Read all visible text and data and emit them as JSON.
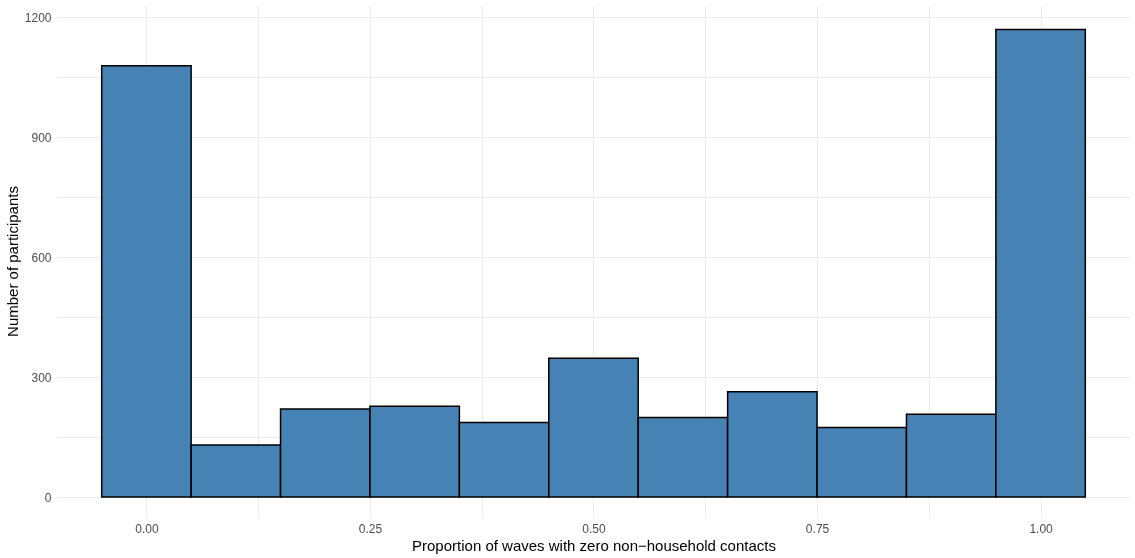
{
  "chart_data": {
    "type": "histogram",
    "xlabel": "Proportion of waves with zero non−household contacts",
    "ylabel": "Number of participants",
    "bins": [
      -0.05,
      0.05,
      0.15,
      0.25,
      0.35,
      0.45,
      0.55,
      0.65,
      0.75,
      0.85,
      0.95,
      1.05
    ],
    "values": [
      1078,
      130,
      220,
      227,
      186,
      347,
      199,
      263,
      174,
      207,
      1169
    ],
    "color": "#4682b4",
    "xlim": [
      -0.1,
      1.1
    ],
    "ylim": [
      -50,
      1230
    ],
    "xticks": [
      {
        "value": 0,
        "label": "0.00"
      },
      {
        "value": 0.125,
        "label": null
      },
      {
        "value": 0.25,
        "label": "0.25"
      },
      {
        "value": 0.375,
        "label": null
      },
      {
        "value": 0.5,
        "label": "0.50"
      },
      {
        "value": 0.625,
        "label": null
      },
      {
        "value": 0.75,
        "label": "0.75"
      },
      {
        "value": 0.875,
        "label": null
      },
      {
        "value": 1,
        "label": "1.00"
      }
    ],
    "yticks": [
      0,
      {
        "value": 150,
        "label": null
      },
      300,
      {
        "value": 450,
        "label": null
      },
      600,
      {
        "value": 750,
        "label": null
      },
      900,
      {
        "value": 1050,
        "label": null
      },
      1200
    ],
    "grid": true
  }
}
